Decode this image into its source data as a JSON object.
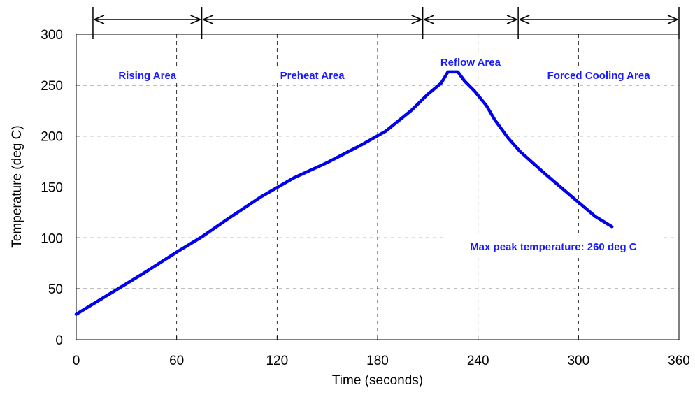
{
  "chart_data": {
    "type": "line",
    "xlabel": "Time (seconds)",
    "ylabel": "Temperature (deg C)",
    "xlim": [
      0,
      360
    ],
    "ylim": [
      0,
      300
    ],
    "x_ticks": [
      "0",
      "60",
      "120",
      "180",
      "240",
      "300",
      "360"
    ],
    "y_ticks": [
      "0",
      "50",
      "100",
      "150",
      "200",
      "250",
      "300"
    ],
    "grid": true,
    "series": [
      {
        "color": "#0000ee",
        "x": [
          0,
          20,
          40,
          60,
          75,
          90,
          110,
          130,
          150,
          170,
          185,
          200,
          210,
          218,
          222,
          228,
          232,
          238,
          245,
          250,
          258,
          265,
          280,
          300,
          310,
          320
        ],
        "y": [
          25,
          45,
          65,
          86,
          101,
          118,
          140,
          159,
          174,
          191,
          205,
          225,
          241,
          252,
          263,
          263,
          254,
          244,
          230,
          216,
          198,
          185,
          163,
          135,
          121,
          111
        ]
      }
    ],
    "regions": [
      {
        "label": "Rising Area",
        "x_start": 10,
        "x_end": 75
      },
      {
        "label": "Preheat Area",
        "x_start": 75,
        "x_end": 207
      },
      {
        "label": "Reflow Area",
        "x_start": 207,
        "x_end": 264
      },
      {
        "label": "Forced Cooling Area",
        "x_start": 264,
        "x_end": 360
      }
    ],
    "annotations": [
      {
        "text": "Max peak temperature: 260 deg C",
        "x": 285,
        "y": 88
      }
    ]
  }
}
